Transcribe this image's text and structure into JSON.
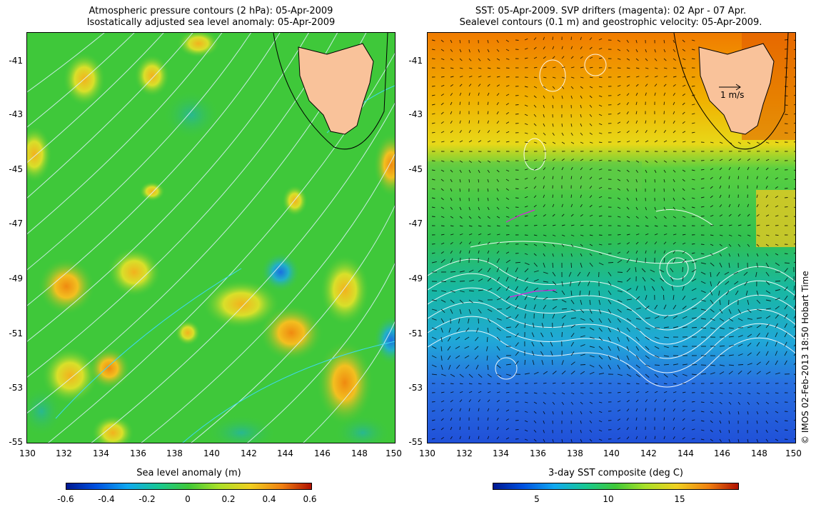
{
  "left_panel": {
    "title_line1": "Atmospheric pressure contours (2 hPa): 05-Apr-2009",
    "title_line2": "Isostatically adjusted sea level anomaly: 05-Apr-2009",
    "x_ticks": [
      "130",
      "132",
      "134",
      "136",
      "138",
      "140",
      "142",
      "144",
      "146",
      "148",
      "150"
    ],
    "y_ticks": [
      "-41",
      "-43",
      "-45",
      "-47",
      "-49",
      "-51",
      "-53",
      "-55"
    ],
    "colorbar_label": "Sea level anomaly (m)",
    "colorbar_ticks": [
      "-0.6",
      "-0.4",
      "-0.2",
      "0",
      "0.2",
      "0.4",
      "0.6"
    ]
  },
  "right_panel": {
    "title_line1": "SST: 05-Apr-2009. SVP drifters (magenta): 02 Apr - 07 Apr.",
    "title_line2": "Sealevel contours (0.1 m) and geostrophic velocity: 05-Apr-2009.",
    "x_ticks": [
      "130",
      "132",
      "134",
      "136",
      "138",
      "140",
      "142",
      "144",
      "146",
      "148",
      "150"
    ],
    "y_ticks": [
      "-41",
      "-43",
      "-45",
      "-47",
      "-49",
      "-51",
      "-53",
      "-55"
    ],
    "velocity_scale_label": "1 m/s",
    "colorbar_label": "3-day SST composite (deg C)",
    "colorbar_ticks": [
      "5",
      "10",
      "15"
    ]
  },
  "credit": "© IMOS 02-Feb-2013 18:50 Hobart Time",
  "colors": {
    "land": "#f9c29a",
    "sla_mid": "#3fc83a",
    "sst_warm": "#f08a00",
    "sst_cold": "#1a4fd8",
    "contour_pressure": "#d8f0ff",
    "contour_sla": "#ffffff"
  }
}
